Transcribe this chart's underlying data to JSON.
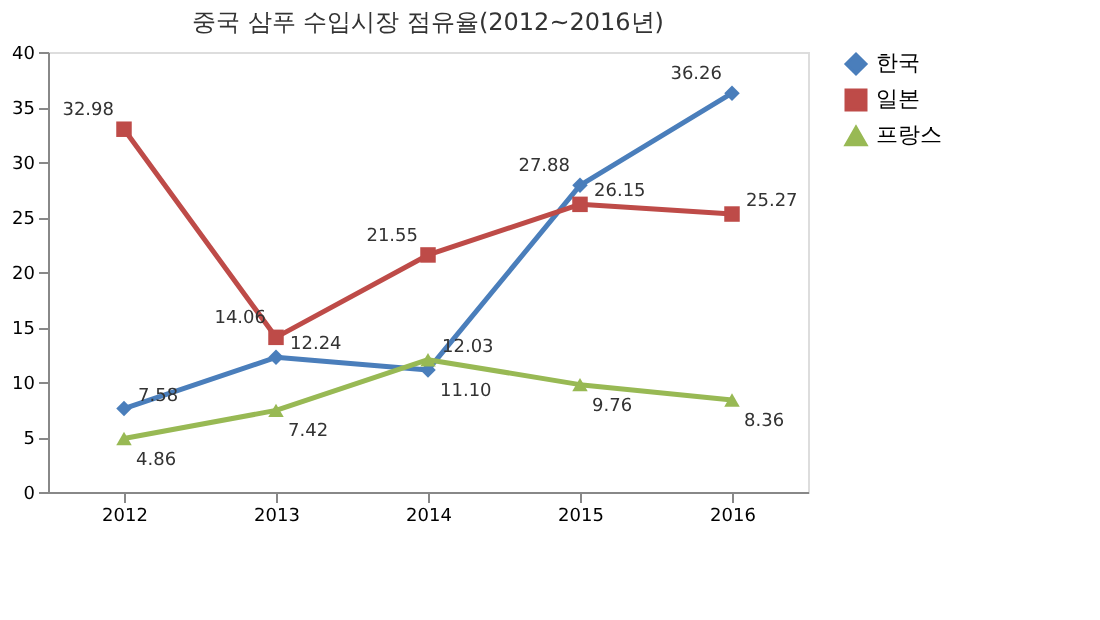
{
  "chart_data": {
    "type": "line",
    "title": "중국 삼푸 수입시장 점유율(2012~2016년)",
    "categories": [
      "2012",
      "2013",
      "2014",
      "2015",
      "2016"
    ],
    "series": [
      {
        "name": "한국",
        "color": "#4a7ebb",
        "marker": "diamond",
        "values": [
          7.58,
          12.24,
          11.1,
          27.88,
          36.26
        ],
        "value_labels": [
          "7.58",
          "12.24",
          "11.10",
          "27.88",
          "36.26"
        ]
      },
      {
        "name": "일본",
        "color": "#be4b48",
        "marker": "square",
        "values": [
          32.98,
          14.06,
          21.55,
          26.15,
          25.27
        ]
      },
      {
        "name": "프랑스",
        "color": "#98b954",
        "marker": "triangle",
        "values": [
          4.86,
          7.42,
          12.03,
          9.76,
          8.36
        ]
      }
    ],
    "ylim": [
      0,
      40
    ],
    "yticks": [
      0,
      5,
      10,
      15,
      20,
      25,
      30,
      35,
      40
    ],
    "grid": false,
    "legend": "right",
    "data_labels": true
  }
}
